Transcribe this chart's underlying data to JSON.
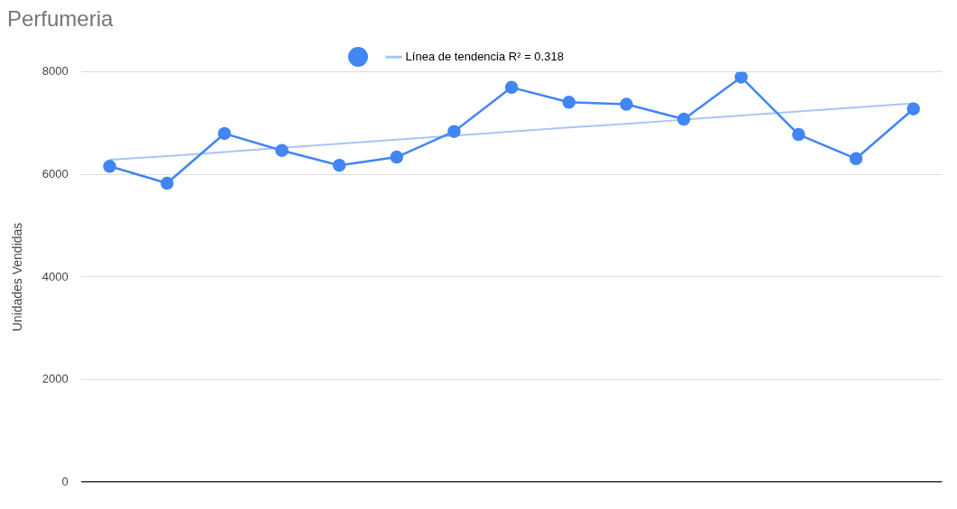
{
  "chart_data": {
    "type": "line",
    "title": "Perfumeria",
    "ylabel": "Unidades Vendidas",
    "categories": [
      null,
      null,
      null,
      null,
      null,
      null,
      null,
      null,
      null,
      null,
      null,
      null,
      null,
      null,
      null
    ],
    "ylim": [
      0,
      8000
    ],
    "yticks": [
      0,
      2000,
      4000,
      6000,
      8000
    ],
    "series": [
      {
        "color": "#4285f4",
        "values": [
          6160,
          5830,
          6800,
          6470,
          6180,
          6340,
          6840,
          7700,
          7410,
          7370,
          7080,
          7900,
          6780,
          6310,
          7280
        ]
      },
      {
        "name": "Línea de tendencia R² = 0.318",
        "type": "line",
        "color": "#a8c5f8",
        "values": [
          6290,
          6360,
          6440,
          6520,
          6600,
          6680,
          6760,
          6840,
          6920,
          6990,
          7070,
          7150,
          7230,
          7310,
          7390
        ],
        "marker": "none"
      }
    ],
    "grid": "y",
    "legend": "top",
    "tick_labels": "y",
    "marker": "circle",
    "line_style": "solid"
  }
}
